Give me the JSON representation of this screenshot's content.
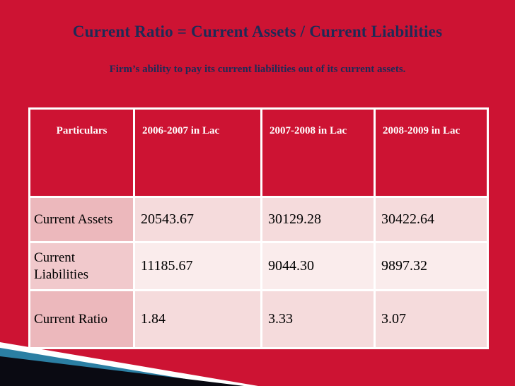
{
  "slide": {
    "title": "Current Ratio = Current Assets / Current Liabilities",
    "subtitle": "Firm’s ability to pay its current liabilities out of its current assets.",
    "colors": {
      "background": "#CD1333",
      "title_text": "#1E2A56",
      "header_bg": "#CD1333",
      "header_text": "#FFFFFF",
      "row_label_odd": "#ECB8BC",
      "row_data_odd": "#F5DBDC",
      "row_label_even": "#F1C9CC",
      "row_data_even": "#FAECEC",
      "grid_line": "#FFFFFF",
      "stripe_white": "#FFFFFF",
      "stripe_teal": "#2B7FA3",
      "stripe_black": "#0A0A12"
    }
  },
  "table": {
    "columns": [
      "Particulars",
      "2006-2007 in Lac",
      "2007-2008 in Lac",
      "2008-2009 in Lac"
    ],
    "rows": [
      {
        "label": "Current Assets",
        "values": [
          "20543.67",
          "30129.28",
          "30422.64"
        ]
      },
      {
        "label": "Current Liabilities",
        "values": [
          "11185.67",
          "9044.30",
          "9897.32"
        ]
      },
      {
        "label": "Current Ratio",
        "values": [
          "1.84",
          "3.33",
          "3.07"
        ]
      }
    ]
  }
}
